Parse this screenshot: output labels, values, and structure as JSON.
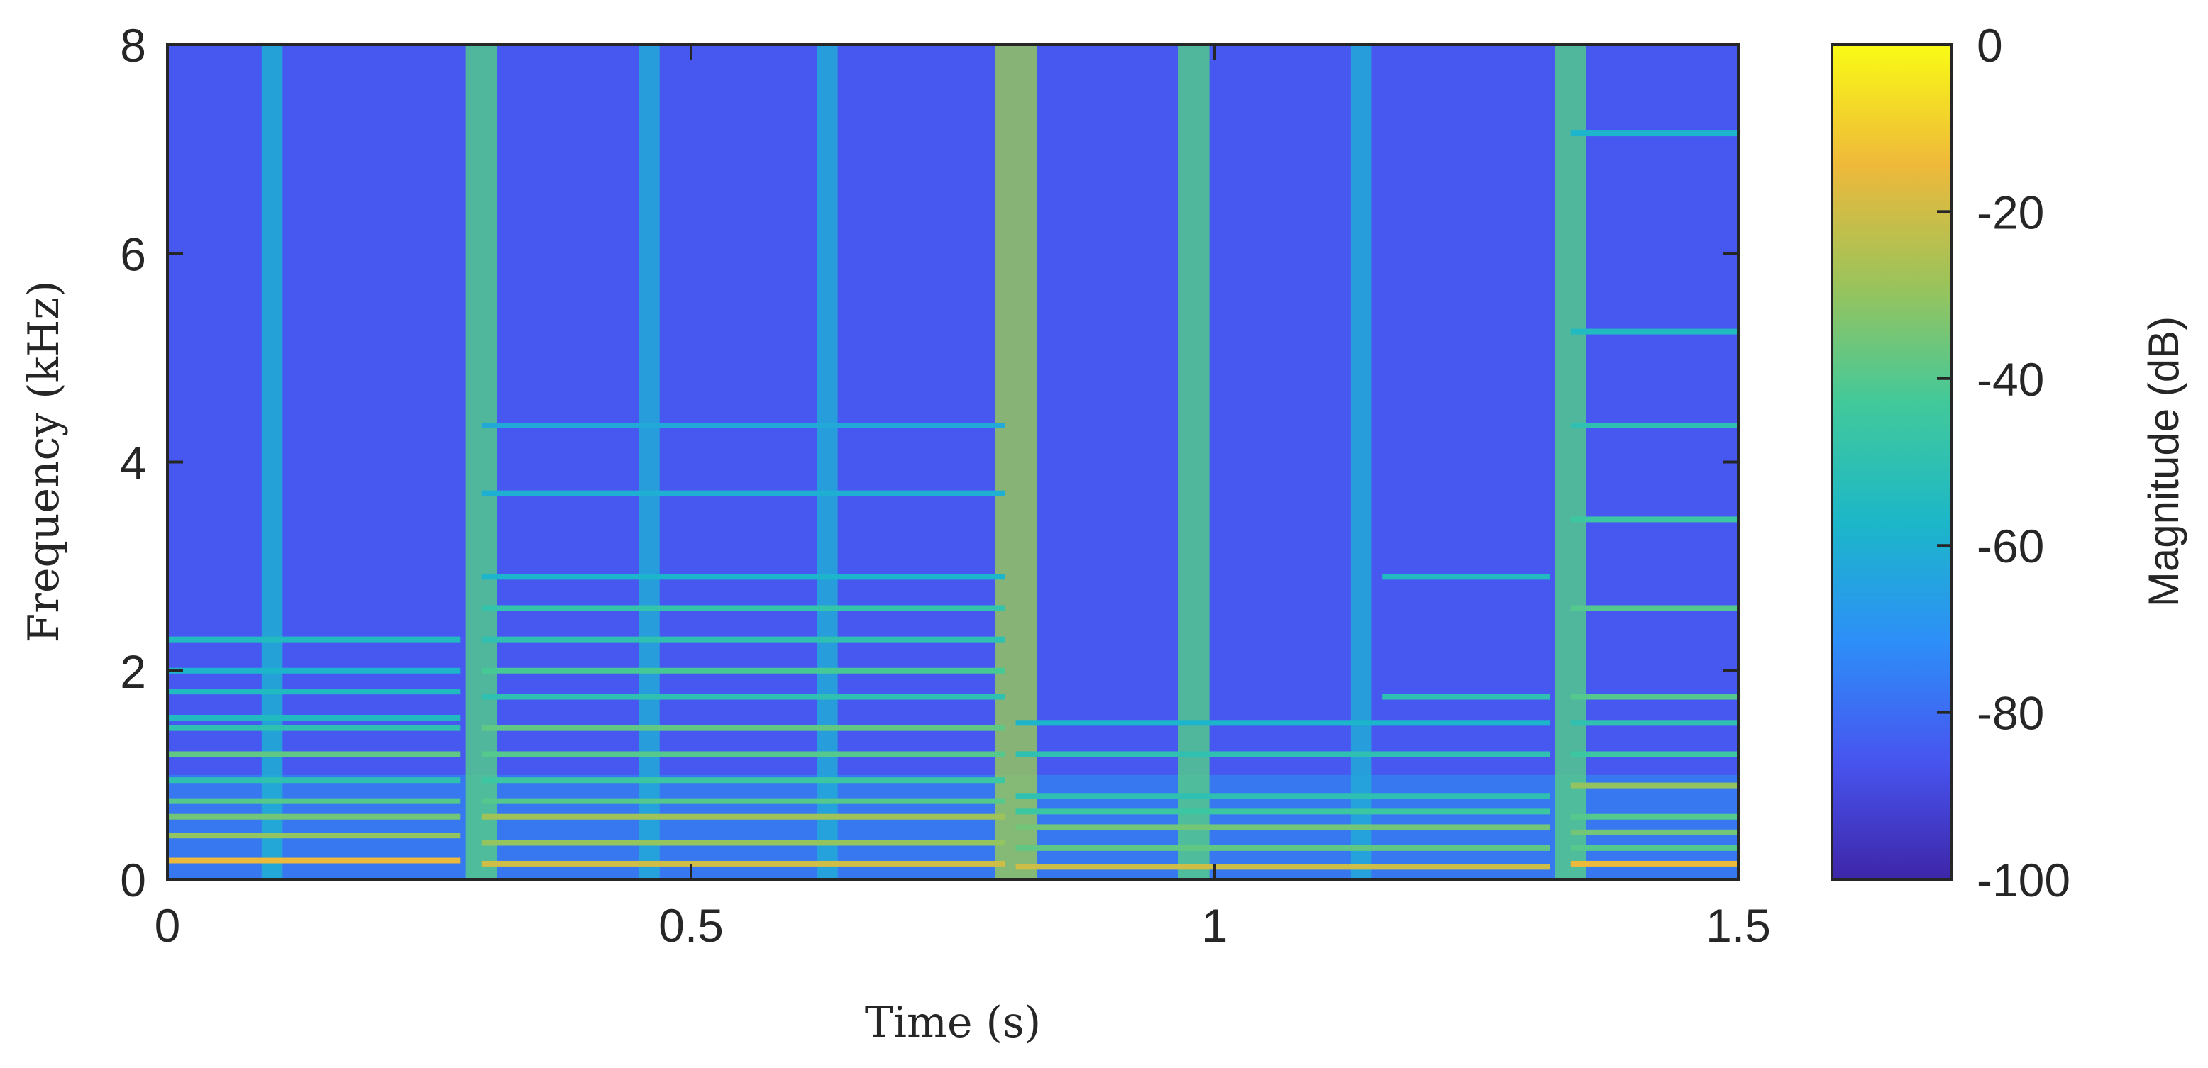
{
  "chart_data": {
    "type": "heatmap",
    "title": "",
    "xlabel": "Time (s)",
    "ylabel": "Frequency (kHz)",
    "xlim": [
      0,
      1.5
    ],
    "ylim": [
      0,
      8
    ],
    "x_ticks": [
      0,
      0.5,
      1,
      1.5
    ],
    "x_tick_labels": [
      "0",
      "0.5",
      "1",
      "1.5"
    ],
    "y_ticks": [
      0,
      2,
      4,
      6,
      8
    ],
    "y_tick_labels": [
      "0",
      "2",
      "4",
      "6",
      "8"
    ],
    "colorbar": {
      "label": "Magnitude (dB)",
      "range": [
        -100,
        0
      ],
      "ticks": [
        0,
        -20,
        -40,
        -60,
        -80,
        -100
      ],
      "tick_labels": [
        "0",
        "-20",
        "-40",
        "-60",
        "-80",
        "-100"
      ],
      "colormap": [
        "#3e26a8",
        "#4755f0",
        "#2d8ff8",
        "#1cb7c8",
        "#42c99a",
        "#9cc35a",
        "#efb93a",
        "#f9fb15"
      ]
    },
    "background_level_db": -85,
    "onsets": [
      {
        "t": 0.1,
        "level_db": -60,
        "width_s": 0.02
      },
      {
        "t": 0.3,
        "level_db": -40,
        "width_s": 0.03
      },
      {
        "t": 0.46,
        "level_db": -62,
        "width_s": 0.02
      },
      {
        "t": 0.63,
        "level_db": -62,
        "width_s": 0.02
      },
      {
        "t": 0.81,
        "level_db": -30,
        "width_s": 0.04
      },
      {
        "t": 0.98,
        "level_db": -40,
        "width_s": 0.03
      },
      {
        "t": 1.14,
        "level_db": -62,
        "width_s": 0.02
      },
      {
        "t": 1.34,
        "level_db": -40,
        "width_s": 0.03
      }
    ],
    "harmonic_bands": [
      {
        "t_start": 0.0,
        "t_end": 0.28,
        "freq_khz": [
          0.18,
          0.42,
          0.6,
          0.75,
          0.95,
          1.2,
          1.45,
          1.55,
          1.8,
          2.0,
          2.3
        ],
        "levels_db": [
          -15,
          -30,
          -35,
          -40,
          -50,
          -38,
          -50,
          -55,
          -55,
          -58,
          -55
        ]
      },
      {
        "t_start": 0.3,
        "t_end": 0.8,
        "freq_khz": [
          0.15,
          0.35,
          0.6,
          0.75,
          0.95,
          1.2,
          1.45,
          1.75,
          2.0,
          2.3,
          2.6,
          2.9,
          3.7,
          4.35
        ],
        "levels_db": [
          -20,
          -30,
          -28,
          -40,
          -45,
          -40,
          -38,
          -50,
          -42,
          -50,
          -48,
          -58,
          -60,
          -62
        ]
      },
      {
        "t_start": 0.81,
        "t_end": 1.32,
        "freq_khz": [
          0.12,
          0.3,
          0.5,
          0.65,
          0.8,
          1.2,
          1.5
        ],
        "levels_db": [
          -20,
          -38,
          -35,
          -45,
          -50,
          -50,
          -58
        ]
      },
      {
        "t_start": 1.16,
        "t_end": 1.32,
        "freq_khz": [
          1.75,
          2.9
        ],
        "levels_db": [
          -50,
          -55
        ]
      },
      {
        "t_start": 1.34,
        "t_end": 1.5,
        "freq_khz": [
          0.15,
          0.3,
          0.45,
          0.6,
          0.9,
          1.2,
          1.5,
          1.75,
          2.6,
          3.45,
          4.35,
          5.25,
          7.15
        ],
        "levels_db": [
          -15,
          -40,
          -35,
          -40,
          -30,
          -45,
          -50,
          -40,
          -40,
          -45,
          -50,
          -55,
          -58
        ]
      }
    ]
  }
}
